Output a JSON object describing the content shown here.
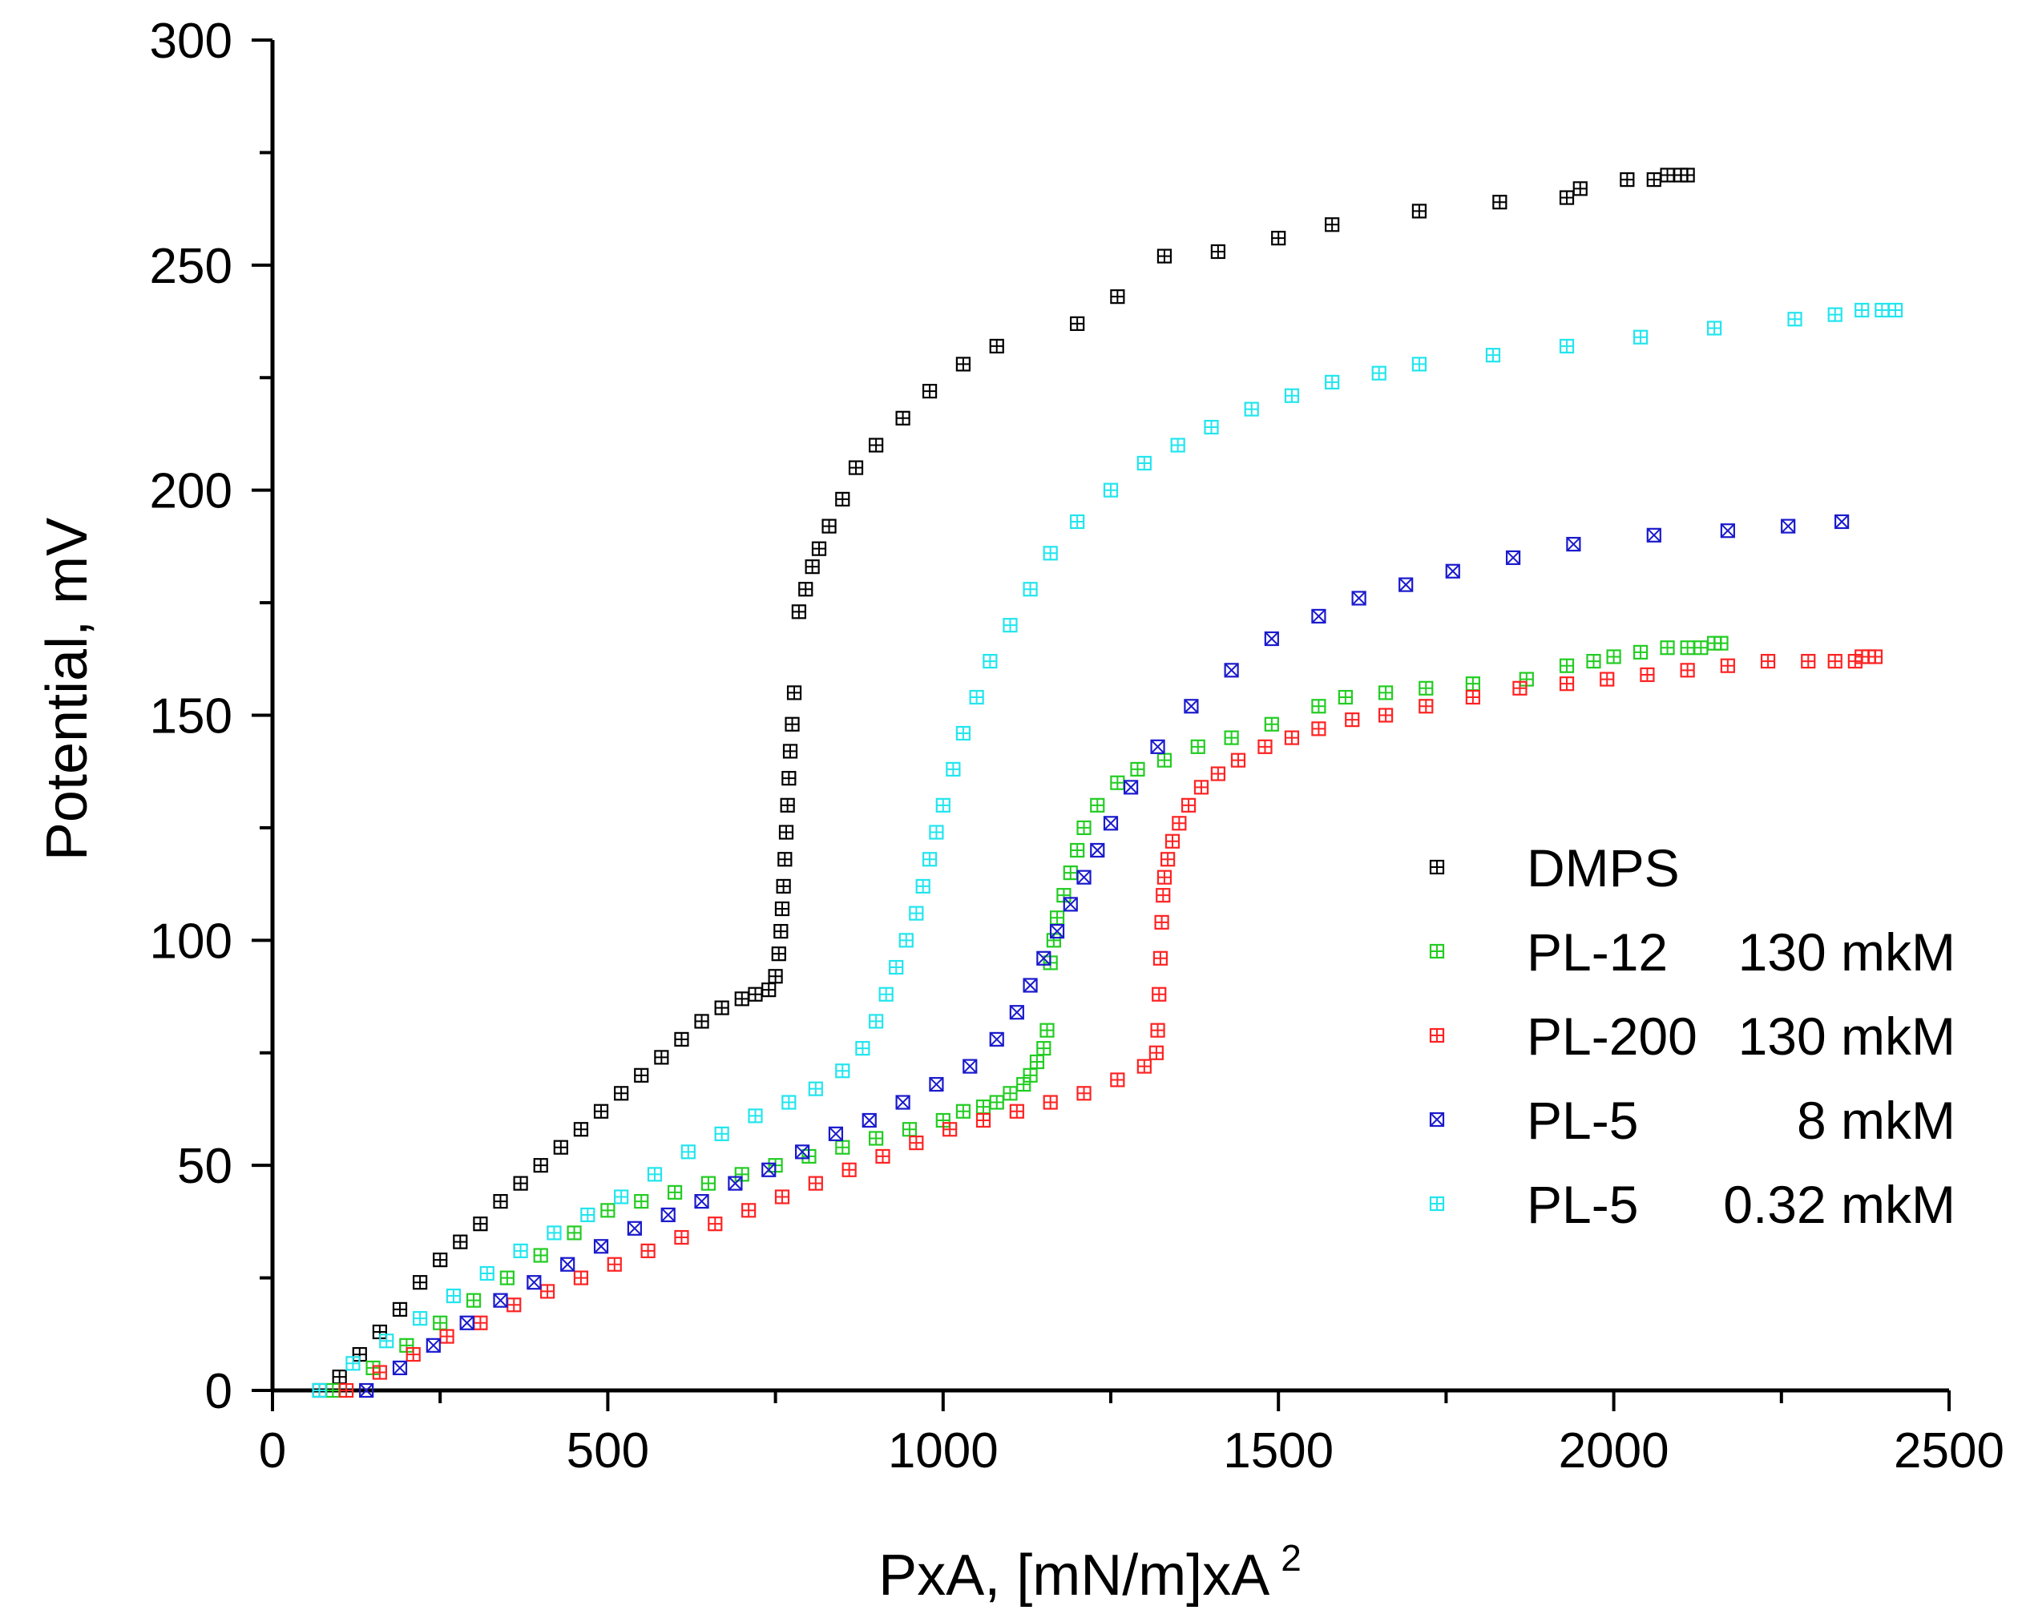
{
  "chart_data": {
    "type": "scatter",
    "xlabel": "PxA, [mN/m]xA",
    "xlabel_superscript": "2",
    "ylabel": "Potential, mV",
    "xlim": [
      0,
      2500
    ],
    "ylim": [
      0,
      300
    ],
    "x_ticks": [
      0,
      500,
      1000,
      1500,
      2000,
      2500
    ],
    "y_ticks": [
      0,
      50,
      100,
      150,
      200,
      250,
      300
    ],
    "x_tick_labels": [
      "0",
      "500",
      "1000",
      "1500",
      "2000",
      "2500"
    ],
    "y_tick_labels": [
      "0",
      "50",
      "100",
      "150",
      "200",
      "250",
      "300"
    ],
    "grid": false,
    "legend_position": "bottom-right",
    "series": [
      {
        "name": "DMPS",
        "label": "DMPS",
        "concentration": "",
        "color": "#000000",
        "marker": "square-plus",
        "x": [
          70,
          100,
          130,
          160,
          190,
          220,
          250,
          280,
          310,
          340,
          370,
          400,
          430,
          460,
          490,
          520,
          550,
          580,
          610,
          640,
          670,
          700,
          720,
          740,
          750,
          755,
          758,
          760,
          762,
          764,
          766,
          768,
          770,
          772,
          775,
          778,
          785,
          795,
          805,
          815,
          830,
          850,
          870,
          900,
          940,
          980,
          1030,
          1080,
          1200,
          1260,
          1330,
          1410,
          1500,
          1580,
          1710,
          1830,
          1930,
          1950,
          2020,
          2060,
          2080,
          2100,
          2110
        ],
        "y": [
          0,
          3,
          8,
          13,
          18,
          24,
          29,
          33,
          37,
          42,
          46,
          50,
          54,
          58,
          62,
          66,
          70,
          74,
          78,
          82,
          85,
          87,
          88,
          89,
          92,
          97,
          102,
          107,
          112,
          118,
          124,
          130,
          136,
          142,
          148,
          155,
          173,
          178,
          183,
          187,
          192,
          198,
          205,
          210,
          216,
          222,
          228,
          232,
          237,
          243,
          252,
          253,
          256,
          259,
          262,
          264,
          265,
          267,
          269,
          269,
          270,
          270,
          270
        ],
        "y_fix_note": ""
      },
      {
        "name": "PL-12 130 mkM",
        "label": "PL-12",
        "concentration": "130 mkM",
        "color": "#22cc22",
        "marker": "square-plus",
        "x": [
          90,
          150,
          200,
          250,
          300,
          350,
          400,
          450,
          500,
          550,
          600,
          650,
          700,
          750,
          800,
          850,
          900,
          950,
          1000,
          1030,
          1060,
          1080,
          1100,
          1120,
          1130,
          1140,
          1150,
          1155,
          1160,
          1165,
          1170,
          1180,
          1190,
          1200,
          1210,
          1230,
          1260,
          1290,
          1330,
          1380,
          1430,
          1490,
          1560,
          1600,
          1660,
          1720,
          1790,
          1870,
          1930,
          1970,
          2000,
          2040,
          2080,
          2110,
          2130,
          2150,
          2160
        ],
        "y": [
          0,
          5,
          10,
          15,
          20,
          25,
          30,
          35,
          40,
          42,
          44,
          46,
          48,
          50,
          52,
          54,
          56,
          58,
          60,
          62,
          63,
          64,
          66,
          68,
          70,
          73,
          76,
          80,
          95,
          100,
          105,
          110,
          115,
          120,
          125,
          130,
          135,
          138,
          140,
          143,
          145,
          148,
          152,
          154,
          155,
          156,
          157,
          158,
          161,
          162,
          163,
          164,
          165,
          165,
          165,
          166,
          166
        ],
        "y_fix_note": ""
      },
      {
        "name": "PL-200 130 mkM",
        "label": "PL-200",
        "concentration": "130 mkM",
        "color": "#ff2222",
        "marker": "square-plus",
        "x": [
          110,
          160,
          210,
          260,
          310,
          360,
          410,
          460,
          510,
          560,
          610,
          660,
          710,
          760,
          810,
          860,
          910,
          960,
          1010,
          1060,
          1110,
          1160,
          1210,
          1260,
          1300,
          1318,
          1320,
          1322,
          1324,
          1326,
          1328,
          1330,
          1335,
          1342,
          1352,
          1366,
          1385,
          1410,
          1440,
          1480,
          1520,
          1560,
          1610,
          1660,
          1720,
          1790,
          1860,
          1930,
          1990,
          2050,
          2110,
          2170,
          2230,
          2290,
          2330,
          2360,
          2370,
          2380,
          2390
        ],
        "y": [
          0,
          4,
          8,
          12,
          15,
          19,
          22,
          25,
          28,
          31,
          34,
          37,
          40,
          43,
          46,
          49,
          52,
          55,
          58,
          60,
          62,
          64,
          66,
          69,
          72,
          75,
          80,
          88,
          96,
          104,
          110,
          114,
          118,
          122,
          126,
          130,
          134,
          137,
          140,
          143,
          145,
          147,
          149,
          150,
          152,
          154,
          156,
          157,
          158,
          159,
          160,
          161,
          162,
          162,
          162,
          162,
          163,
          163,
          163
        ],
        "y_fix_note": ""
      },
      {
        "name": "PL-5 8 mkM",
        "label": "PL-5",
        "concentration": "8 mkM",
        "color": "#1a1acc",
        "marker": "square-x",
        "x": [
          140,
          190,
          240,
          290,
          340,
          390,
          440,
          490,
          540,
          590,
          640,
          690,
          740,
          790,
          840,
          890,
          940,
          990,
          1040,
          1080,
          1110,
          1130,
          1150,
          1170,
          1190,
          1210,
          1230,
          1250,
          1280,
          1320,
          1370,
          1430,
          1490,
          1560,
          1620,
          1690,
          1760,
          1850,
          1940,
          2060,
          2170,
          2260,
          2340
        ],
        "y": [
          0,
          5,
          10,
          15,
          20,
          24,
          28,
          32,
          36,
          39,
          42,
          46,
          49,
          53,
          57,
          60,
          64,
          68,
          72,
          78,
          84,
          90,
          96,
          102,
          108,
          114,
          120,
          126,
          134,
          143,
          152,
          160,
          167,
          172,
          176,
          179,
          182,
          185,
          188,
          190,
          191,
          192,
          193
        ],
        "y_fix_note": ""
      },
      {
        "name": "PL-5 0.32 mkM",
        "label": "PL-5",
        "concentration": "0.32 mkM",
        "color": "#22e5ee",
        "marker": "square-plus",
        "x": [
          70,
          120,
          170,
          220,
          270,
          320,
          370,
          420,
          470,
          520,
          570,
          620,
          670,
          720,
          770,
          810,
          850,
          880,
          900,
          915,
          930,
          945,
          960,
          970,
          980,
          990,
          1000,
          1015,
          1030,
          1050,
          1070,
          1100,
          1130,
          1160,
          1200,
          1250,
          1300,
          1350,
          1400,
          1460,
          1520,
          1580,
          1650,
          1710,
          1820,
          1930,
          2040,
          2150,
          2270,
          2330,
          2370,
          2400,
          2420
        ],
        "y": [
          0,
          6,
          11,
          16,
          21,
          26,
          31,
          35,
          39,
          43,
          48,
          53,
          57,
          61,
          64,
          67,
          71,
          76,
          82,
          88,
          94,
          100,
          106,
          112,
          118,
          124,
          130,
          138,
          146,
          154,
          162,
          170,
          178,
          186,
          193,
          200,
          206,
          210,
          214,
          218,
          221,
          224,
          226,
          228,
          230,
          232,
          234,
          236,
          238,
          239,
          240,
          240,
          240
        ],
        "y_fix_note": ""
      }
    ]
  }
}
